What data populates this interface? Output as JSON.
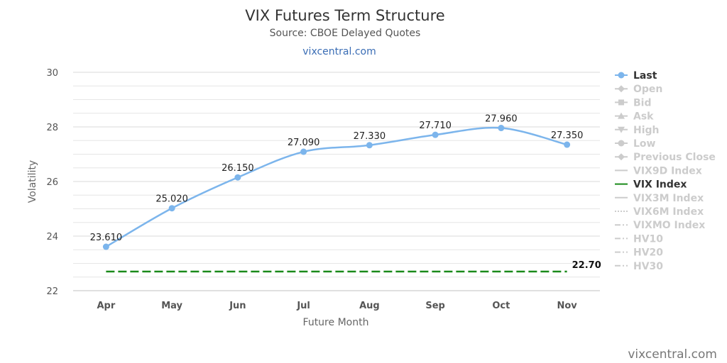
{
  "chart_data": {
    "type": "line",
    "title": "VIX Futures Term Structure",
    "subtitle": "Source: CBOE Delayed Quotes",
    "link_text": "vixcentral.com",
    "credit": "vixcentral.com",
    "xlabel": "Future Month",
    "ylabel": "Volatility",
    "categories": [
      "Apr",
      "May",
      "Jun",
      "Jul",
      "Aug",
      "Sep",
      "Oct",
      "Nov"
    ],
    "ylim": [
      22,
      30
    ],
    "yticks": [
      "22",
      "24",
      "26",
      "28",
      "30"
    ],
    "ytick_values": [
      22,
      24,
      26,
      28,
      30
    ],
    "minor_gridline_step": 0.5,
    "series": [
      {
        "name": "Last",
        "values": [
          23.61,
          25.02,
          26.15,
          27.09,
          27.33,
          27.71,
          27.96,
          27.35
        ],
        "labels": [
          "23.610",
          "25.020",
          "26.150",
          "27.090",
          "27.330",
          "27.710",
          "27.960",
          "27.350"
        ],
        "color": "#7cb5ec"
      },
      {
        "name": "VIX Index",
        "value": 22.7,
        "label": "22.70",
        "color": "#1a8a1a",
        "style": "dashed"
      }
    ],
    "legend": {
      "position": "right",
      "items": [
        {
          "name": "Last",
          "active": true,
          "symbol": "circle",
          "color": "#3b6fb0"
        },
        {
          "name": "Open",
          "active": false,
          "symbol": "diamond"
        },
        {
          "name": "Bid",
          "active": false,
          "symbol": "square"
        },
        {
          "name": "Ask",
          "active": false,
          "symbol": "triangle"
        },
        {
          "name": "High",
          "active": false,
          "symbol": "triangle-down"
        },
        {
          "name": "Low",
          "active": false,
          "symbol": "circle"
        },
        {
          "name": "Previous Close",
          "active": false,
          "symbol": "diamond"
        },
        {
          "name": "VIX9D Index",
          "active": false,
          "symbol": "line"
        },
        {
          "name": "VIX Index",
          "active": true,
          "symbol": "line",
          "color": "#1a8a1a"
        },
        {
          "name": "VIX3M Index",
          "active": false,
          "symbol": "line"
        },
        {
          "name": "VIX6M Index",
          "active": false,
          "symbol": "dotted"
        },
        {
          "name": "VIXMO Index",
          "active": false,
          "symbol": "dashdot"
        },
        {
          "name": "HV10",
          "active": false,
          "symbol": "dashdot"
        },
        {
          "name": "HV20",
          "active": false,
          "symbol": "dashdot"
        },
        {
          "name": "HV30",
          "active": false,
          "symbol": "dashdot"
        }
      ]
    },
    "grid": true
  }
}
